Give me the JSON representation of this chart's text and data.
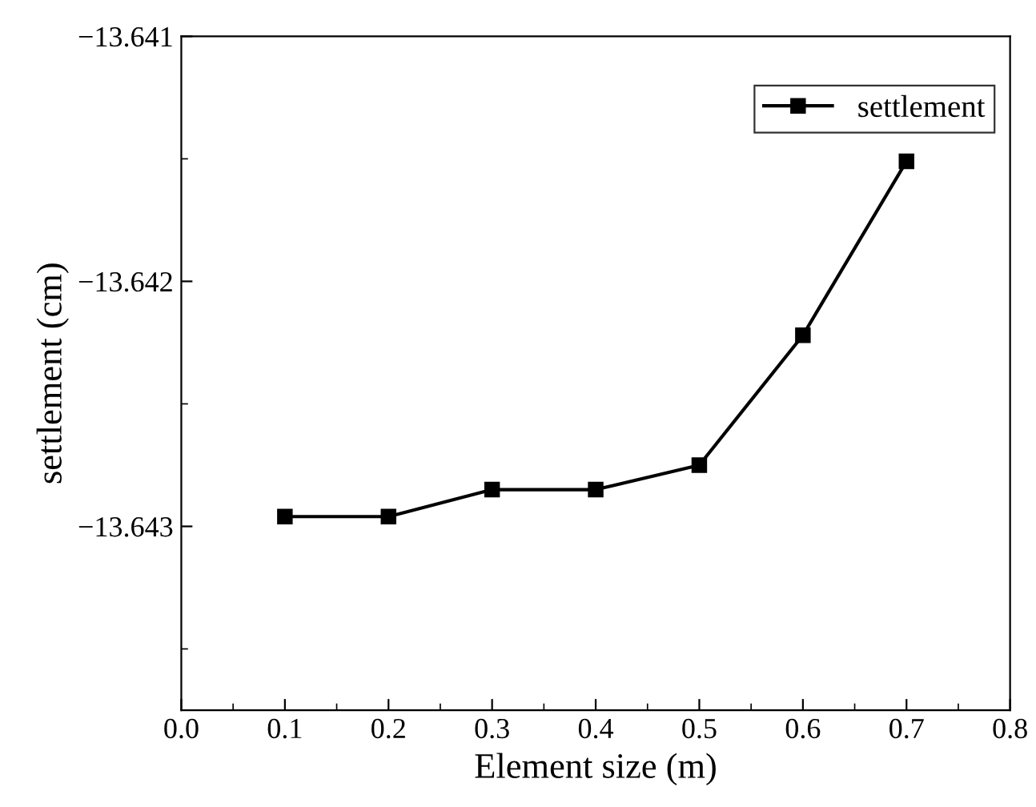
{
  "chart_data": {
    "type": "line",
    "xlabel": "Element size (m)",
    "ylabel": "settlement (cm)",
    "x": [
      0.1,
      0.2,
      0.3,
      0.4,
      0.5,
      0.6,
      0.7
    ],
    "series": [
      {
        "name": "settlement",
        "color": "#000000",
        "values": [
          -13.64296,
          -13.64296,
          -13.64285,
          -13.64285,
          -13.64275,
          -13.64222,
          -13.64151
        ]
      }
    ],
    "xlim": [
      0.0,
      0.8
    ],
    "xticks": [
      {
        "value": 0,
        "label": "0.0"
      },
      0.1,
      0.2,
      0.3,
      0.4,
      0.5,
      0.6,
      0.7,
      0.8
    ],
    "ylim": [
      -13.64375,
      -13.641
    ],
    "yticks": [
      {
        "value": -13.643,
        "label": "−13.643"
      },
      {
        "value": -13.642,
        "label": "−13.642"
      },
      {
        "value": -13.641,
        "label": "−13.641"
      }
    ],
    "marker": "square",
    "line_style": "solid",
    "legend": "top right",
    "grid": false
  }
}
